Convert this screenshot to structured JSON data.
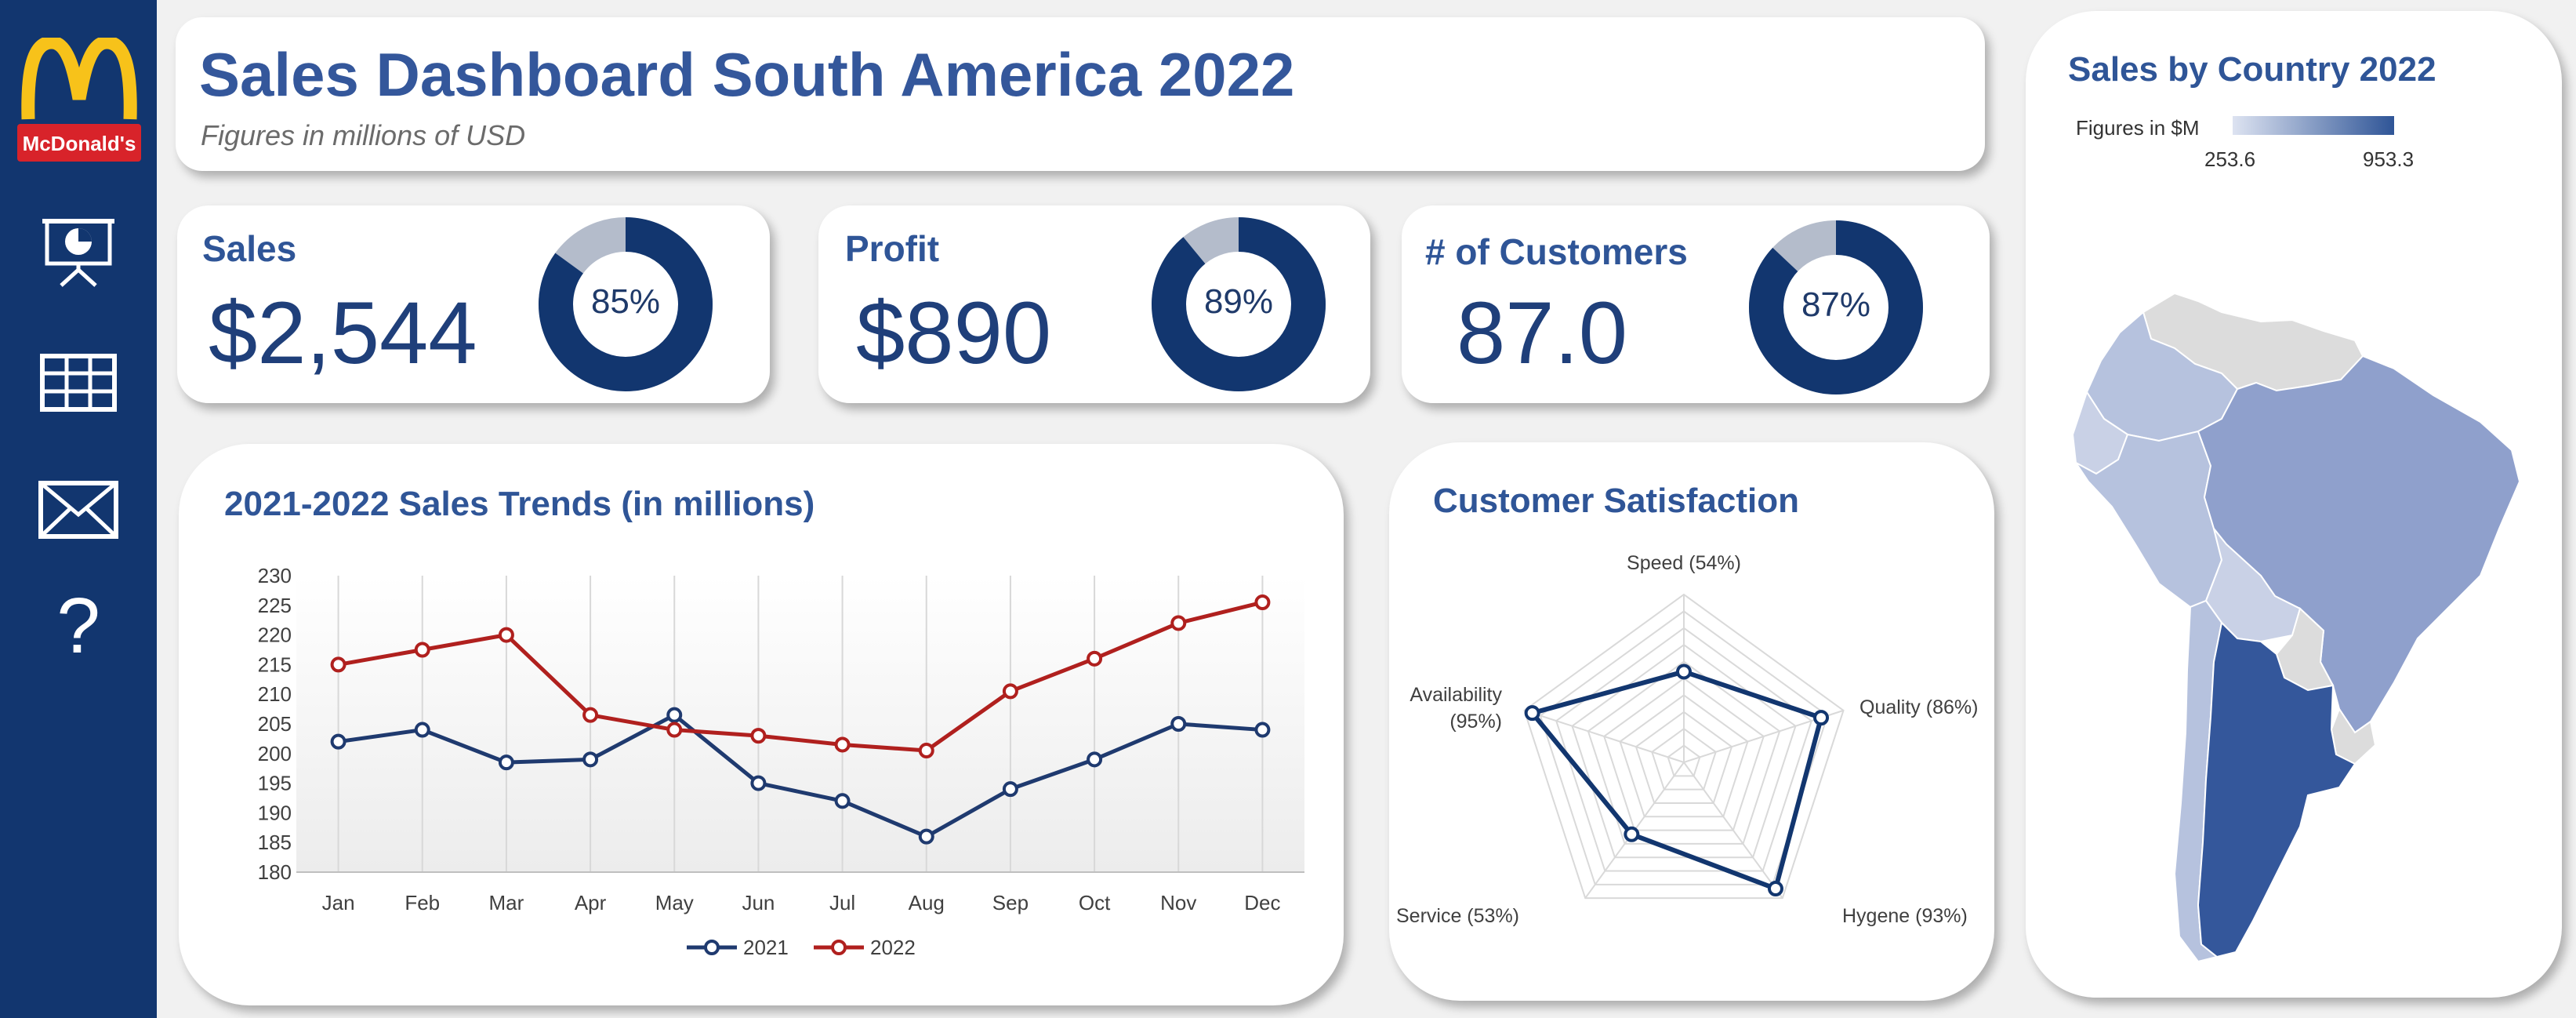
{
  "brand": {
    "logo_text": "McDonald's"
  },
  "sidebar": {
    "icons": [
      "presentation-icon",
      "table-icon",
      "mail-icon",
      "help-icon"
    ],
    "help_glyph": "?"
  },
  "header": {
    "title": "Sales Dashboard South America 2022",
    "subtitle": "Figures in millions of USD"
  },
  "kpis": [
    {
      "label": "Sales",
      "value": "$2,544",
      "percent": 85,
      "percent_label": "85%"
    },
    {
      "label": "Profit",
      "value": "$890",
      "percent": 89,
      "percent_label": "89%"
    },
    {
      "label": "# of Customers",
      "value": "87.0",
      "percent": 87,
      "percent_label": "87%"
    }
  ],
  "colors": {
    "navy": "#12366f",
    "title_blue": "#2f5597",
    "line_2021": "#1f3a6f",
    "line_2022": "#b0201e",
    "donut_rest": "#b4bccb",
    "map_low": "#c9d1e6",
    "map_high": "#2f5597",
    "map_none": "#dcdcdc"
  },
  "chart_data": [
    {
      "type": "line",
      "title": "2021-2022 Sales Trends (in millions)",
      "categories": [
        "Jan",
        "Feb",
        "Mar",
        "Apr",
        "May",
        "Jun",
        "Jul",
        "Aug",
        "Sep",
        "Oct",
        "Nov",
        "Dec"
      ],
      "series": [
        {
          "name": "2021",
          "values": [
            202,
            204,
            198.5,
            199,
            206.5,
            195,
            192,
            186,
            194,
            199,
            205,
            204
          ]
        },
        {
          "name": "2022",
          "values": [
            215,
            217.5,
            220,
            206.5,
            204,
            203,
            201.5,
            200.5,
            210.5,
            216,
            222,
            225.5
          ]
        }
      ],
      "ylim": [
        180,
        230
      ],
      "yticks": [
        "230",
        "225",
        "220",
        "215",
        "210",
        "205",
        "200",
        "195",
        "190",
        "185",
        "180"
      ],
      "legend": "bottom",
      "grid": "vertical"
    },
    {
      "type": "radar",
      "title": "Customer Satisfaction",
      "axes": [
        {
          "label": "Speed (54%)",
          "value": 54
        },
        {
          "label": "Quality (86%)",
          "value": 86
        },
        {
          "label": "Hygene (93%)",
          "value": 93
        },
        {
          "label": "Service (53%)",
          "value": 53
        },
        {
          "label_lines": [
            "Availability",
            "(95%)"
          ],
          "value": 95
        }
      ],
      "max": 100,
      "rings": 10
    },
    {
      "type": "map",
      "title": "Sales by Country 2022",
      "legend_title": "Figures in $M",
      "legend_min": "253.6",
      "legend_max": "953.3"
    }
  ]
}
